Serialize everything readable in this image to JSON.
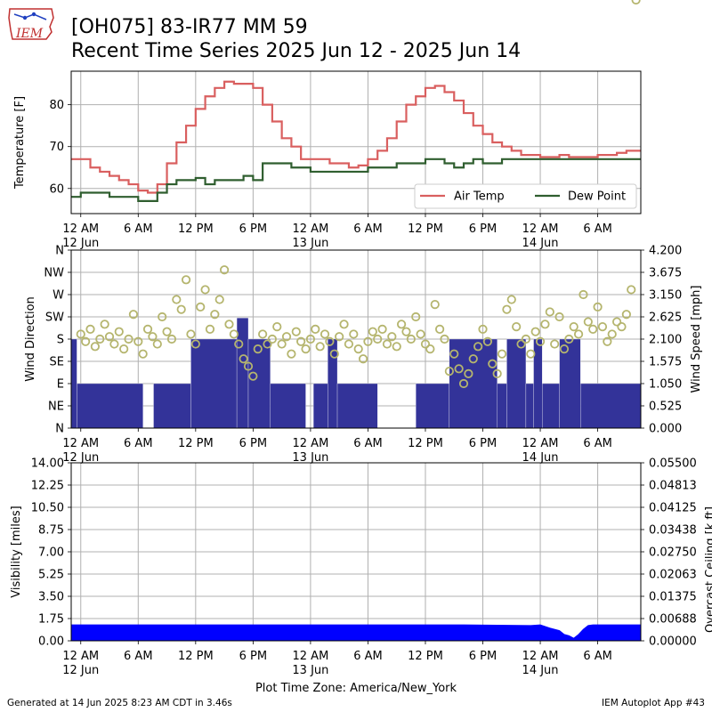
{
  "header": {
    "title_line1": "[OH075] 83-IR77 MM 59",
    "title_line2": "Recent Time Series 2025 Jun 12 - 2025 Jun 14",
    "logo_text": "IEM"
  },
  "footer": {
    "generated": "Generated at 14 Jun 2025 8:23 AM CDT in 3.46s",
    "app": "IEM Autoplot App #43",
    "timezone_label": "Plot Time Zone: America/New_York"
  },
  "colors": {
    "air_temp": "#d95f5f",
    "dew_point": "#2f5e2f",
    "wind_bar": "#333399",
    "wind_dir": "#b5b56e",
    "visibility": "#0000ff",
    "ceiling_axis": "#008000",
    "grid": "#b0b0b0"
  },
  "x_axis": {
    "start_hour": -1,
    "end_hour": 58.5,
    "ticks": [
      {
        "hour": 0,
        "label": "12 AM",
        "sub": "12 Jun"
      },
      {
        "hour": 6,
        "label": "6 AM",
        "sub": ""
      },
      {
        "hour": 12,
        "label": "12 PM",
        "sub": ""
      },
      {
        "hour": 18,
        "label": "6 PM",
        "sub": ""
      },
      {
        "hour": 24,
        "label": "12 AM",
        "sub": "13 Jun"
      },
      {
        "hour": 30,
        "label": "6 AM",
        "sub": ""
      },
      {
        "hour": 36,
        "label": "12 PM",
        "sub": ""
      },
      {
        "hour": 42,
        "label": "6 PM",
        "sub": ""
      },
      {
        "hour": 48,
        "label": "12 AM",
        "sub": "14 Jun"
      },
      {
        "hour": 54,
        "label": "6 AM",
        "sub": ""
      }
    ]
  },
  "chart_data": [
    {
      "type": "line",
      "ylabel": "Temperature [F]",
      "ylim": [
        54,
        88
      ],
      "yticks": [
        60,
        70,
        80
      ],
      "grid": true,
      "legend_position": "bottom-right",
      "series": [
        {
          "name": "Air Temp",
          "x": [
            -1,
            0,
            1,
            2,
            3,
            4,
            5,
            6,
            7,
            8,
            9,
            10,
            11,
            12,
            13,
            14,
            15,
            16,
            17,
            18,
            19,
            20,
            21,
            22,
            23,
            24,
            25,
            26,
            27,
            28,
            29,
            30,
            31,
            32,
            33,
            34,
            35,
            36,
            37,
            38,
            39,
            40,
            41,
            42,
            43,
            44,
            45,
            46,
            47,
            48,
            49,
            50,
            51,
            52,
            53,
            54,
            55,
            56,
            57,
            58.5
          ],
          "y": [
            67,
            67,
            65,
            64,
            63,
            62,
            61,
            59.5,
            59,
            61,
            66,
            71,
            75,
            79,
            82,
            84,
            85.5,
            85,
            85,
            84,
            80,
            76,
            72,
            70,
            67,
            67,
            67,
            66,
            66,
            65,
            65.5,
            67,
            69,
            72,
            76,
            80,
            82,
            84,
            84.5,
            83,
            81,
            78,
            75,
            73,
            71,
            70,
            69,
            68,
            68,
            67.5,
            67.5,
            68,
            67.5,
            67.5,
            67.5,
            68,
            68,
            68.5,
            69,
            69
          ]
        },
        {
          "name": "Dew Point",
          "x": [
            -1,
            0,
            1,
            2,
            3,
            4,
            5,
            6,
            7,
            8,
            9,
            10,
            11,
            12,
            13,
            14,
            15,
            16,
            17,
            18,
            19,
            20,
            21,
            22,
            23,
            24,
            25,
            26,
            27,
            28,
            29,
            30,
            31,
            32,
            33,
            34,
            35,
            36,
            37,
            38,
            39,
            40,
            41,
            42,
            43,
            44,
            45,
            46,
            47,
            48,
            49,
            50,
            51,
            52,
            53,
            54,
            55,
            56,
            57,
            58.5
          ],
          "y": [
            58,
            59,
            59,
            59,
            58,
            58,
            58,
            57,
            57,
            59,
            61,
            62,
            62,
            62.5,
            61,
            62,
            62,
            62,
            63,
            62,
            66,
            66,
            66,
            65,
            65,
            64,
            64,
            64,
            64,
            64,
            64,
            65,
            65,
            65,
            66,
            66,
            66,
            67,
            67,
            66,
            65,
            66,
            67,
            66,
            66,
            67,
            67,
            67,
            67,
            67,
            67,
            67,
            67,
            67,
            67,
            67,
            67,
            67,
            67,
            67
          ]
        }
      ]
    },
    {
      "type": "bar",
      "ylabel": "Wind Direction",
      "y2label": "Wind Speed [mph]",
      "dir_categories": [
        "N",
        "NE",
        "E",
        "SE",
        "S",
        "SW",
        "W",
        "NW",
        "N"
      ],
      "speed_ylim": [
        0,
        4.2
      ],
      "speed_ticks": [
        "0.000",
        "0.525",
        "1.050",
        "1.575",
        "2.100",
        "2.625",
        "3.150",
        "3.675",
        "4.200"
      ],
      "series": [
        {
          "name": "Wind Speed",
          "bars": [
            [
              -1,
              -0.4,
              2.1
            ],
            [
              -0.4,
              6.5,
              1.05
            ],
            [
              6.5,
              7.6,
              0
            ],
            [
              7.6,
              11.5,
              1.05
            ],
            [
              11.5,
              16.3,
              2.1
            ],
            [
              16.3,
              17.5,
              2.6
            ],
            [
              17.5,
              19.8,
              2.1
            ],
            [
              19.8,
              23.5,
              1.05
            ],
            [
              23.5,
              24.3,
              0
            ],
            [
              24.3,
              25.8,
              1.05
            ],
            [
              25.8,
              26.8,
              2.1
            ],
            [
              26.8,
              31,
              1.05
            ],
            [
              31,
              35,
              0
            ],
            [
              35,
              38.5,
              1.05
            ],
            [
              38.5,
              43.5,
              2.1
            ],
            [
              43.5,
              44.5,
              1.05
            ],
            [
              44.5,
              46.5,
              2.1
            ],
            [
              46.5,
              47.3,
              1.05
            ],
            [
              47.3,
              48.2,
              2.1
            ],
            [
              48.2,
              50,
              1.05
            ],
            [
              50,
              52.2,
              2.1
            ],
            [
              52.2,
              58.5,
              1.05
            ]
          ]
        },
        {
          "name": "Wind Direction",
          "x": [
            0,
            0.5,
            1,
            1.5,
            2,
            2.5,
            3,
            3.5,
            4,
            4.5,
            5,
            5.5,
            6,
            6.5,
            7,
            7.5,
            8,
            8.5,
            9,
            9.5,
            10,
            10.5,
            11,
            11.5,
            12,
            12.5,
            13,
            13.5,
            14,
            14.5,
            15,
            15.5,
            16,
            16.5,
            17,
            17.5,
            18,
            18.5,
            19,
            19.5,
            20,
            20.5,
            21,
            21.5,
            22,
            22.5,
            23,
            23.5,
            24,
            24.5,
            25,
            25.5,
            26,
            26.5,
            27,
            27.5,
            28,
            28.5,
            29,
            29.5,
            30,
            30.5,
            31,
            31.5,
            32,
            32.5,
            33,
            33.5,
            34,
            34.5,
            35,
            35.5,
            36,
            36.5,
            37,
            37.5,
            38,
            38.5,
            39,
            39.5,
            40,
            40.5,
            41,
            41.5,
            42,
            42.5,
            43,
            43.5,
            44,
            44.5,
            45,
            45.5,
            46,
            46.5,
            47,
            47.5,
            48,
            48.5,
            49,
            49.5,
            50,
            50.5,
            51,
            51.5,
            52,
            52.5,
            53,
            53.5,
            54,
            54.5,
            55,
            55.5,
            56,
            56.5,
            57,
            57.5,
            58
          ],
          "deg": [
            190,
            175,
            200,
            165,
            180,
            210,
            185,
            170,
            195,
            160,
            180,
            230,
            175,
            150,
            200,
            185,
            170,
            225,
            195,
            180,
            260,
            240,
            300,
            190,
            170,
            245,
            280,
            200,
            230,
            260,
            320,
            210,
            190,
            170,
            140,
            125,
            105,
            160,
            190,
            170,
            180,
            205,
            170,
            185,
            150,
            195,
            175,
            160,
            180,
            200,
            165,
            190,
            175,
            150,
            185,
            210,
            170,
            190,
            160,
            140,
            175,
            195,
            180,
            200,
            170,
            185,
            165,
            210,
            195,
            180,
            225,
            190,
            170,
            160,
            250,
            200,
            180,
            115,
            150,
            120,
            90,
            110,
            140,
            165,
            200,
            175,
            130,
            110,
            150,
            240,
            260,
            205,
            170,
            180,
            150,
            195,
            175,
            210,
            235,
            170,
            225,
            160,
            180,
            205,
            190,
            270,
            215,
            200,
            245,
            205,
            175,
            190,
            215,
            205,
            230,
            280
          ]
        }
      ]
    },
    {
      "type": "area",
      "ylabel": "Visibility [miles]",
      "y2label": "Overcast Ceiling [k ft]",
      "ylim": [
        0,
        14
      ],
      "yticks": [
        "0.00",
        "1.75",
        "3.50",
        "5.25",
        "7.00",
        "8.75",
        "10.50",
        "12.25",
        "14.00"
      ],
      "y2ticks": [
        "0.00000",
        "0.00688",
        "0.01375",
        "0.02063",
        "0.02750",
        "0.03438",
        "0.04125",
        "0.04813",
        "0.05500"
      ],
      "series": [
        {
          "name": "Visibility",
          "x": [
            -1,
            40,
            47,
            48,
            49,
            50,
            50.5,
            51,
            51.5,
            52,
            52.5,
            53,
            53.5,
            54,
            55,
            58.5
          ],
          "y": [
            1.25,
            1.25,
            1.2,
            1.25,
            1.0,
            0.8,
            0.5,
            0.4,
            0.2,
            0.5,
            0.9,
            1.2,
            1.25,
            1.25,
            1.25,
            1.25
          ]
        }
      ]
    }
  ]
}
